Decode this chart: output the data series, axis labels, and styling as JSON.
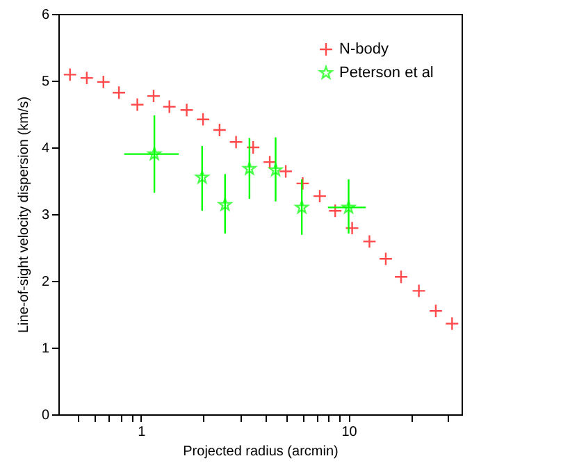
{
  "chart_data": {
    "type": "scatter",
    "xlabel": "Projected radius (arcmin)",
    "ylabel": "Line-of-sight velocity dispersion (km/s)",
    "log": "x",
    "xlim": [
      0.4,
      35
    ],
    "ylim": [
      0,
      6
    ],
    "xticks": [
      {
        "value": 0.5,
        "label": null
      },
      {
        "value": 0.6,
        "label": null
      },
      {
        "value": 0.7,
        "label": null
      },
      {
        "value": 0.8,
        "label": null
      },
      {
        "value": 0.9,
        "label": null
      },
      1,
      {
        "value": 2,
        "label": null
      },
      {
        "value": 3,
        "label": null
      },
      {
        "value": 4,
        "label": null
      },
      {
        "value": 5,
        "label": null
      },
      {
        "value": 6,
        "label": null
      },
      {
        "value": 7,
        "label": null
      },
      {
        "value": 8,
        "label": null
      },
      {
        "value": 9,
        "label": null
      },
      10,
      {
        "value": 20,
        "label": null
      },
      {
        "value": 30,
        "label": null
      }
    ],
    "yticks": [
      0,
      1,
      2,
      3,
      4,
      5,
      6
    ],
    "grid": false,
    "legend": "top right",
    "series": [
      {
        "name": "N-body",
        "color": "#ff0000",
        "marker": "cross",
        "x": [
          0.455,
          0.548,
          0.659,
          0.783,
          0.96,
          1.15,
          1.37,
          1.66,
          1.99,
          2.39,
          2.87,
          3.47,
          4.17,
          4.98,
          6.01,
          7.26,
          8.62,
          10.4,
          12.6,
          15.1,
          17.9,
          21.8,
          26.3,
          31.5
        ],
        "values": [
          5.09,
          5.04,
          4.98,
          4.82,
          4.64,
          4.77,
          4.61,
          4.56,
          4.42,
          4.26,
          4.08,
          4.0,
          3.78,
          3.64,
          3.46,
          3.27,
          3.05,
          2.79,
          2.59,
          2.33,
          2.06,
          1.85,
          1.55,
          1.36
        ]
      },
      {
        "name": "Peterson et al",
        "color": "#00ff00",
        "marker": "star",
        "x": [
          1.16,
          1.97,
          2.54,
          3.33,
          4.45,
          5.95,
          10.0
        ],
        "values": [
          3.9,
          3.55,
          3.14,
          3.68,
          3.66,
          3.1,
          3.1
        ],
        "errors": [
          [
            3.32,
            4.48
          ],
          [
            3.05,
            4.02
          ],
          [
            2.71,
            3.6
          ],
          [
            3.23,
            4.14
          ],
          [
            3.19,
            4.15
          ],
          [
            2.69,
            3.52
          ],
          [
            2.71,
            3.52
          ]
        ],
        "xerrors": [
          [
            0.83,
            1.52
          ],
          null,
          null,
          null,
          null,
          null,
          [
            7.95,
            12.1
          ]
        ]
      }
    ]
  }
}
